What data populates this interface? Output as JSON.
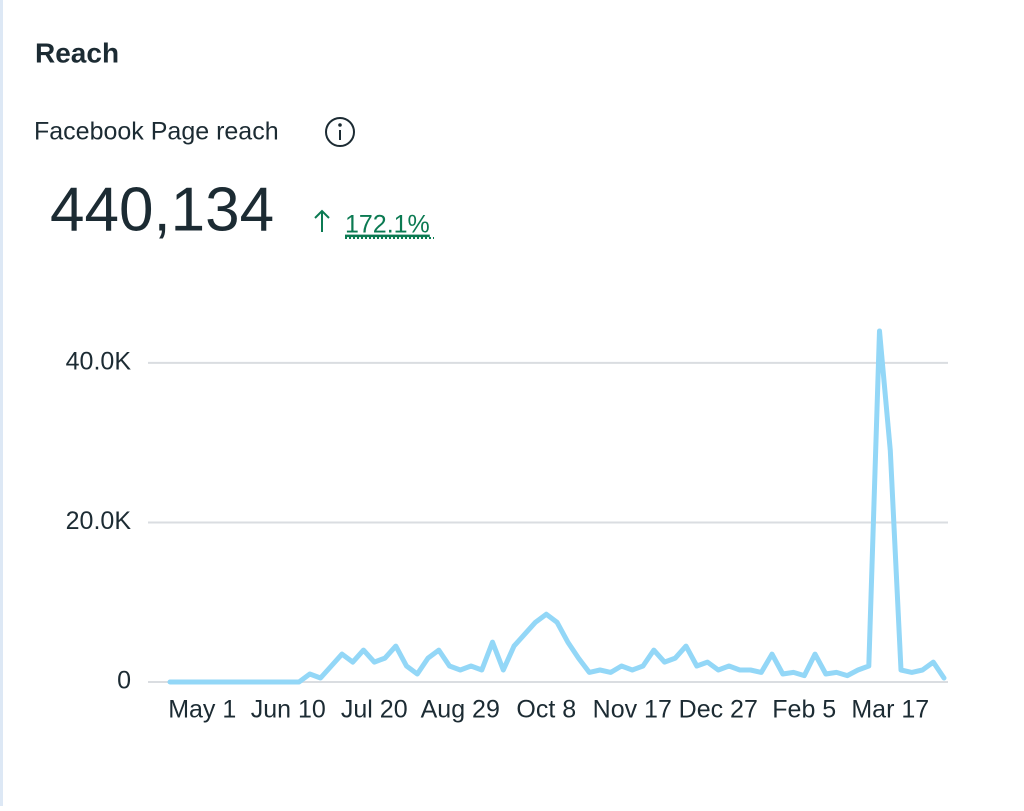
{
  "header": {
    "title": "Reach"
  },
  "metric": {
    "label": "Facebook Page reach",
    "value": "440,134",
    "change": "172.1%"
  },
  "chart_data": {
    "type": "line",
    "color": "#93d7f7",
    "categories": [
      null,
      null,
      null,
      "May 1",
      null,
      null,
      null,
      null,
      null,
      null,
      null,
      "Jun 10",
      null,
      null,
      null,
      null,
      null,
      null,
      null,
      "Jul 20",
      null,
      null,
      null,
      null,
      null,
      null,
      null,
      "Aug 29",
      null,
      null,
      null,
      null,
      null,
      null,
      null,
      "Oct 8",
      null,
      null,
      null,
      null,
      null,
      null,
      null,
      "Nov 17",
      null,
      null,
      null,
      null,
      null,
      null,
      null,
      "Dec 27",
      null,
      null,
      null,
      null,
      null,
      null,
      null,
      "Feb 5",
      null,
      null,
      null,
      null,
      null,
      null,
      null,
      "Mar 17",
      null,
      null,
      null,
      null,
      null
    ],
    "values": [
      0,
      0,
      0,
      0,
      0,
      0,
      0,
      0,
      0,
      0,
      0,
      0,
      0,
      1000,
      500,
      2000,
      3500,
      2500,
      4000,
      2500,
      3000,
      4500,
      2000,
      1000,
      3000,
      4000,
      2000,
      1500,
      2000,
      1500,
      5000,
      1500,
      4500,
      6000,
      7500,
      8500,
      7500,
      5000,
      3000,
      1200,
      1500,
      1200,
      2000,
      1500,
      2000,
      4000,
      2500,
      3000,
      4500,
      2000,
      2500,
      1500,
      2000,
      1500,
      1500,
      1200,
      3500,
      1000,
      1200,
      800,
      3500,
      1000,
      1200,
      800,
      1500,
      2000,
      44000,
      29000,
      1500,
      1200,
      1500,
      2500,
      500
    ],
    "ylim": [
      0,
      45000
    ],
    "yticks": [
      0,
      {
        "value": 20000,
        "label": "20.0K"
      },
      {
        "value": 40000,
        "label": "40.0K"
      }
    ],
    "grid": true
  }
}
